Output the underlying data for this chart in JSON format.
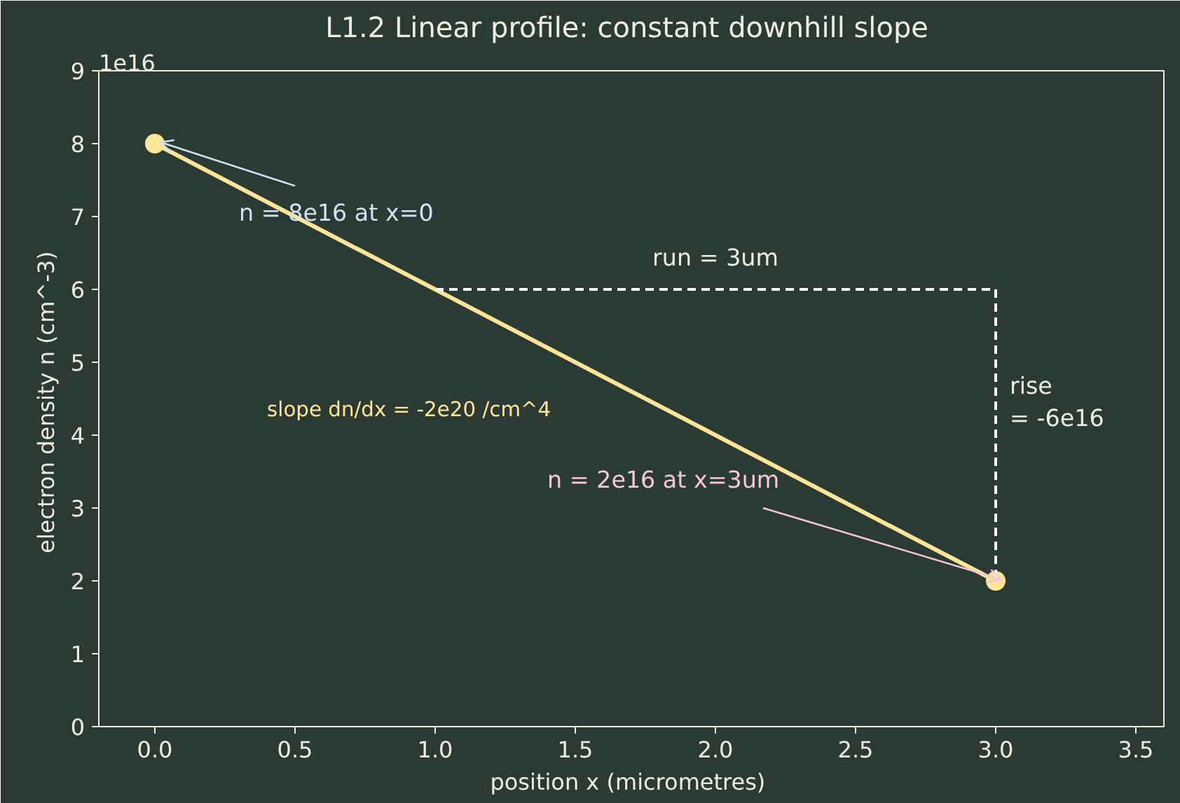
{
  "chart_data": {
    "type": "line",
    "title": "L1.2  Linear profile: constant downhill slope",
    "xlabel": "position x  (micrometres)",
    "ylabel": "electron density n  (cm^-3)",
    "xlim": [
      -0.2,
      3.6
    ],
    "ylim": [
      0,
      9
    ],
    "xticks": [
      {
        "value": 0,
        "label": "0.0"
      },
      {
        "value": 0.5,
        "label": "0.5"
      },
      {
        "value": 1,
        "label": "1.0"
      },
      {
        "value": 1.5,
        "label": "1.5"
      },
      {
        "value": 2,
        "label": "2.0"
      },
      {
        "value": 2.5,
        "label": "2.5"
      },
      {
        "value": 3,
        "label": "3.0"
      },
      {
        "value": 3.5,
        "label": "3.5"
      }
    ],
    "yticks": [
      0,
      1,
      2,
      3,
      4,
      5,
      6,
      7,
      8,
      9
    ],
    "grid": false,
    "series": [
      {
        "color": "#ffe599",
        "x": [
          0,
          3
        ],
        "values": [
          8,
          2
        ],
        "marker": "circle",
        "line_style": "solid"
      },
      {
        "color": "#ffffff",
        "x": [
          1,
          3,
          3
        ],
        "values": [
          6,
          6,
          2
        ],
        "marker": "none",
        "line_style": "dashed"
      }
    ],
    "annotations": [
      {
        "text": "n = 8e16 at x=0",
        "x": 0,
        "y": 8
      },
      {
        "text": "n = 2e16 at x=3um",
        "x": 3,
        "y": 2
      },
      {
        "text": "run = 3um",
        "x": 2,
        "y": 6
      },
      {
        "text": "rise\n= -6e16",
        "x": 3,
        "y": 4
      },
      {
        "text": "slope dn/dx = -2e20 /cm^4",
        "x": 1.5,
        "y": 5
      },
      "1e16"
    ]
  }
}
